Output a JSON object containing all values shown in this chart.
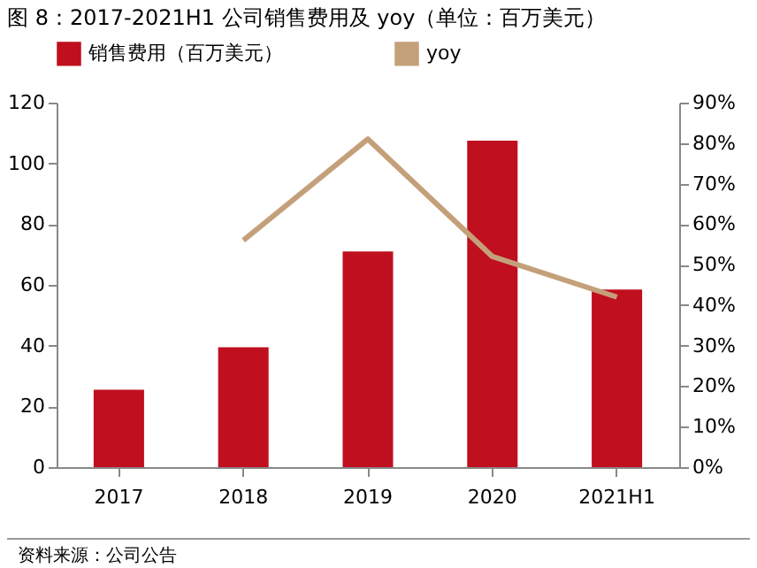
{
  "chart_data": {
    "type": "bar",
    "title": "图 8：2017-2021H1 公司销售费用及 yoy（单位：百万美元）",
    "categories": [
      "2017",
      "2018",
      "2019",
      "2020",
      "2021H1"
    ],
    "series": [
      {
        "name": "销售费用（百万美元）",
        "color": "#c00f1e",
        "values": [
          25.5,
          39.5,
          71,
          107.5,
          58.5
        ]
      },
      {
        "name": "yoy",
        "type": "line",
        "axis": "y2",
        "color": "#c4a07a",
        "values": [
          null,
          56,
          81,
          52,
          42
        ]
      }
    ],
    "ylim": [
      0,
      120
    ],
    "yticks": [
      0,
      20,
      40,
      60,
      80,
      100,
      120
    ],
    "y2lim": [
      0,
      90
    ],
    "y2ticks": [
      {
        "value": 0,
        "label": "0%"
      },
      {
        "value": 10,
        "label": "10%"
      },
      {
        "value": 20,
        "label": "20%"
      },
      {
        "value": 30,
        "label": "30%"
      },
      {
        "value": 40,
        "label": "40%"
      },
      {
        "value": 50,
        "label": "50%"
      },
      {
        "value": 60,
        "label": "60%"
      },
      {
        "value": 70,
        "label": "70%"
      },
      {
        "value": 80,
        "label": "80%"
      },
      {
        "value": 90,
        "label": "90%"
      }
    ],
    "legend": "top",
    "grid": false,
    "annotations": [
      "资料来源：公司公告"
    ]
  }
}
